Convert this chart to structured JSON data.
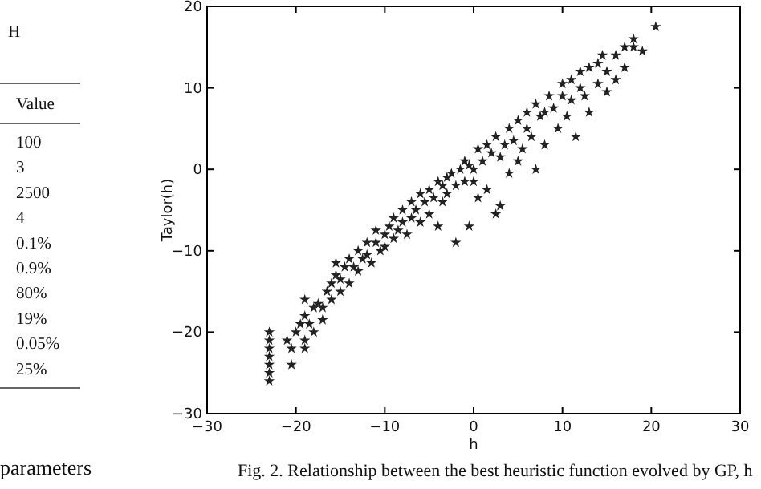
{
  "chart_data": [
    {
      "type": "other",
      "annotations": [
        "H",
        "Value",
        "100",
        "3",
        "2500",
        "4",
        "0.1%",
        "0.9%",
        "80%",
        "19%",
        "0.05%",
        "25%",
        "parameters"
      ]
    },
    {
      "type": "scatter",
      "xlabel": "h",
      "ylabel": "Taylor(h)",
      "marker": "star",
      "color": "#222222",
      "xlim": [
        -30,
        30
      ],
      "ylim": [
        -30,
        20
      ],
      "xticks": [
        -30,
        -20,
        -10,
        0,
        10,
        20,
        30
      ],
      "yticks": [
        -30,
        -20,
        -10,
        0,
        10,
        20
      ],
      "grid": false,
      "annotations": [
        "Fig. 2.   Relationship between the best heuristic function evolved by GP, h"
      ],
      "x": [
        -23,
        -23,
        -23,
        -23,
        -23,
        -23,
        -23,
        -21,
        -20.5,
        -20.5,
        -20,
        -19.5,
        -19,
        -19,
        -19,
        -19,
        -18.5,
        -18,
        -18,
        -17.5,
        -17,
        -17,
        -16.5,
        -16,
        -16,
        -15.5,
        -15.5,
        -15,
        -15,
        -14.5,
        -14,
        -14,
        -13.5,
        -13,
        -13,
        -12.5,
        -12,
        -12,
        -11.5,
        -11,
        -11,
        -10.5,
        -10,
        -10,
        -9.5,
        -9,
        -9,
        -8.5,
        -8,
        -8,
        -7.5,
        -7,
        -7,
        -6.5,
        -6,
        -6,
        -5.5,
        -5,
        -5,
        -4.5,
        -4,
        -4,
        -3.5,
        -3.5,
        -3,
        -3,
        -2.5,
        -2,
        -2,
        -1.5,
        -1,
        -1,
        -0.5,
        -0.5,
        0,
        0,
        0.5,
        0.5,
        1,
        1.5,
        1.5,
        2,
        2.5,
        2.5,
        3,
        3,
        3.5,
        4,
        4,
        4.5,
        5,
        5,
        5.5,
        6,
        6,
        6.5,
        7,
        7,
        7.5,
        8,
        8,
        8.5,
        9,
        9.5,
        10,
        10,
        10.5,
        11,
        11,
        11.5,
        12,
        12,
        12.5,
        13,
        13,
        14,
        14,
        14.5,
        15,
        15,
        16,
        16,
        17,
        17,
        18,
        18,
        19,
        20.5
      ],
      "values": [
        -20,
        -21,
        -22,
        -23,
        -24,
        -25,
        -26,
        -21,
        -22,
        -24,
        -20,
        -19,
        -18,
        -21,
        -22,
        -16,
        -19,
        -20,
        -17,
        -16.5,
        -17,
        -18.5,
        -15,
        -16,
        -14,
        -13,
        -11.5,
        -15,
        -13.5,
        -12,
        -14,
        -11,
        -12,
        -10,
        -12.5,
        -11,
        -9,
        -10.5,
        -11.5,
        -9,
        -7.5,
        -10,
        -8,
        -9.5,
        -7,
        -8.5,
        -6,
        -7.5,
        -5,
        -6.5,
        -8,
        -6,
        -4,
        -5,
        -6.5,
        -3,
        -4,
        -5.5,
        -2.5,
        -3.5,
        -1.5,
        -7,
        -4,
        -2,
        -1,
        -3,
        -0.5,
        -2,
        -9,
        0,
        -1.5,
        1,
        0.5,
        -7,
        0,
        -1.5,
        2.5,
        -3.5,
        1,
        -2.5,
        3,
        2,
        -5.5,
        4,
        1.5,
        -4.5,
        3,
        5,
        -0.5,
        3.5,
        6,
        1,
        2.5,
        5,
        7,
        4,
        8,
        0,
        6.5,
        7,
        3,
        9,
        7.5,
        5,
        9,
        10.5,
        6.5,
        11,
        8.5,
        4,
        10,
        12,
        9,
        12.5,
        7,
        13,
        10.5,
        14,
        12,
        9.5,
        14,
        11,
        15,
        12.5,
        15,
        16,
        14.5,
        17.5
      ]
    }
  ]
}
